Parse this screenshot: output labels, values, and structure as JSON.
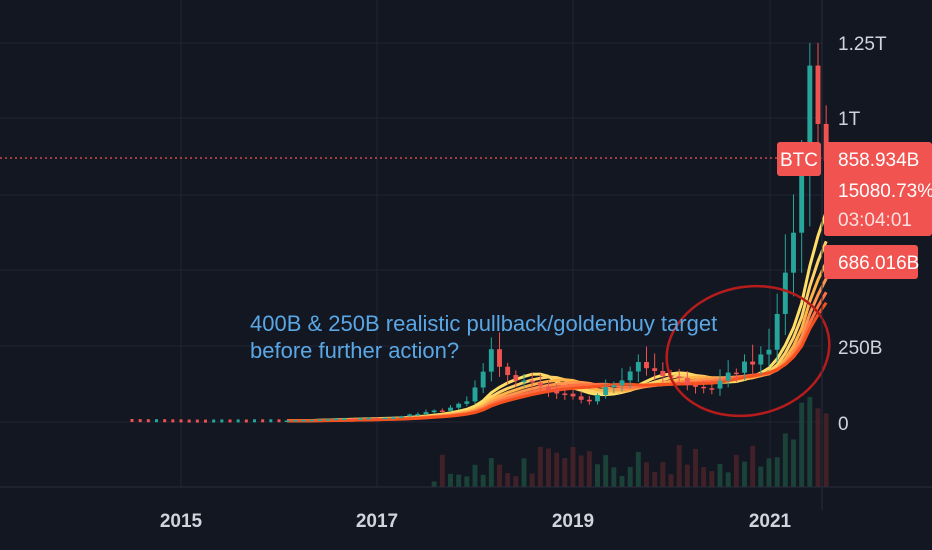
{
  "chart_data": {
    "type": "candlestick",
    "symbol": "BTC",
    "y_axis": {
      "ticks": [
        {
          "label": "1.25T",
          "value": 1250
        },
        {
          "label": "1T",
          "value": 1000
        },
        {
          "label": "250B",
          "value": 250
        },
        {
          "label": "0",
          "value": 0
        }
      ],
      "scale": "non-linear (compressed upper range)",
      "unit": "market cap"
    },
    "x_axis": {
      "ticks": [
        "2015",
        "2017",
        "2019",
        "2021"
      ]
    },
    "last_price_line": {
      "value_label": "858.934B"
    },
    "badges": {
      "symbol": "BTC",
      "price": "858.934B",
      "change": "15080.73%",
      "countdown": "03:04:01",
      "second_price": "686.016B"
    },
    "annotation": {
      "line1": "400B & 250B realistic pullback/goldenbuy target",
      "line2": "before further action?"
    },
    "candles_monthly_approx": [
      {
        "t": "2014-04",
        "close": 5
      },
      {
        "t": "2015-01",
        "close": 3
      },
      {
        "t": "2015-10",
        "close": 4
      },
      {
        "t": "2016-06",
        "close": 11
      },
      {
        "t": "2016-12",
        "close": 15
      },
      {
        "t": "2017-06",
        "close": 40
      },
      {
        "t": "2017-09",
        "close": 70
      },
      {
        "t": "2017-12",
        "close": 230
      },
      {
        "t": "2018-01",
        "close": 170
      },
      {
        "t": "2018-06",
        "close": 110
      },
      {
        "t": "2018-12",
        "close": 65
      },
      {
        "t": "2019-06",
        "close": 190
      },
      {
        "t": "2019-12",
        "close": 130
      },
      {
        "t": "2020-03",
        "close": 115
      },
      {
        "t": "2020-06",
        "close": 170
      },
      {
        "t": "2020-10",
        "close": 230
      },
      {
        "t": "2020-12",
        "close": 500
      },
      {
        "t": "2021-01",
        "close": 620
      },
      {
        "t": "2021-02",
        "close": 860
      },
      {
        "t": "2021-03",
        "close": 1100
      },
      {
        "t": "2021-04",
        "close": 1050
      },
      {
        "t": "2021-05",
        "close": 860
      }
    ],
    "moving_average_ribbon": {
      "count": 6,
      "colors": [
        "#ffe066",
        "#ffd166",
        "#ffb347",
        "#ff944d",
        "#ff7043",
        "#f4511e"
      ]
    },
    "colors": {
      "up": "#26a69a",
      "down": "#ef5350",
      "background": "#131722",
      "highlight_circle": "#b71c1c"
    },
    "grid": true
  }
}
